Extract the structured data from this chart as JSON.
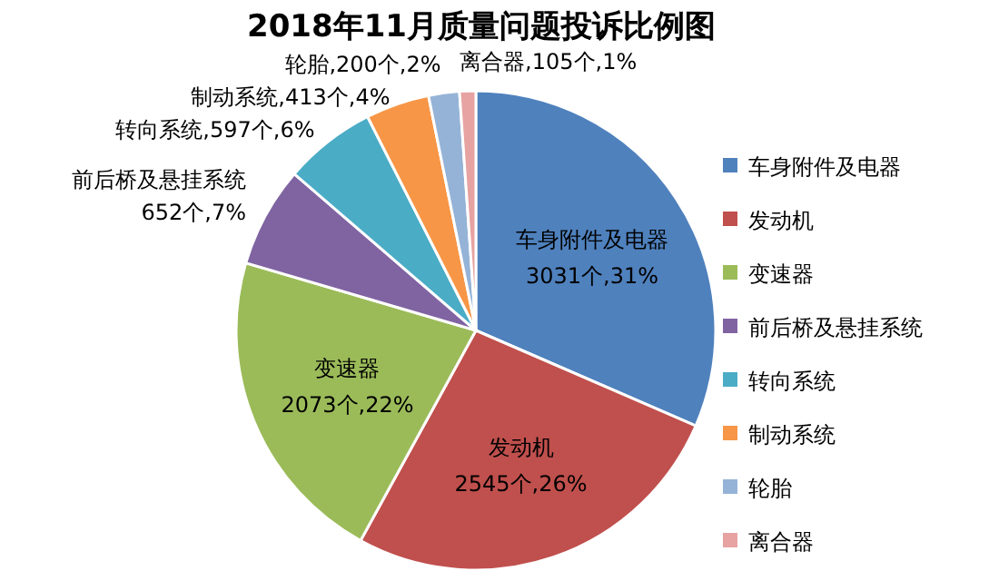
{
  "chart_data": {
    "type": "pie",
    "title": "2018年11月质量问题投诉比例图",
    "categories": [
      "车身附件及电器",
      "发动机",
      "变速器",
      "前后桥及悬挂系统",
      "转向系统",
      "制动系统",
      "轮胎",
      "离合器"
    ],
    "values": [
      3031,
      2545,
      2073,
      652,
      597,
      413,
      200,
      105
    ],
    "value_labels": [
      "3031个,31%",
      "2545个,26%",
      "2073个,22%",
      "652个,7%",
      "转向系统,597个,6%",
      "制动系统,413个,4%",
      "轮胎,200个,2%",
      "离合器,105个,1%"
    ],
    "colors": [
      "#4f81bd",
      "#c0504d",
      "#9bbb59",
      "#8064a2",
      "#4bacc6",
      "#f79646",
      "#95b3d7",
      "#e6a3a1"
    ],
    "legend": "right"
  }
}
